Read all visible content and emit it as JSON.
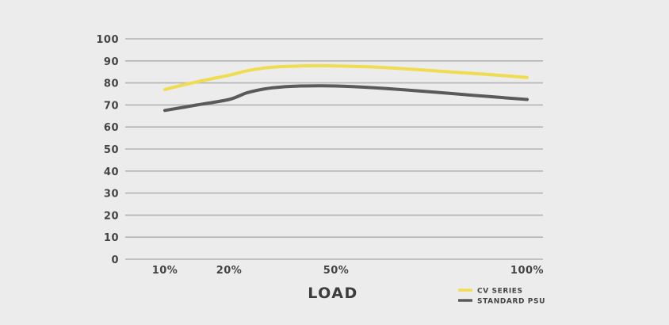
{
  "chart_data": {
    "type": "line",
    "xlabel": "LOAD",
    "ylabel": "",
    "ylim": [
      0,
      100
    ],
    "yticks": [
      0,
      10,
      20,
      30,
      40,
      50,
      60,
      70,
      80,
      90,
      100
    ],
    "xlim": [
      0,
      100
    ],
    "xticks": [
      {
        "value": 10,
        "label": "10%"
      },
      {
        "value": 20,
        "label": "20%"
      },
      {
        "value": 50,
        "label": "50%"
      },
      {
        "value": 100,
        "label": "100%"
      }
    ],
    "grid": true,
    "legend_position": "bottom-right",
    "series": [
      {
        "name": "CV SERIES",
        "color": "#f0dc50",
        "x": [
          10,
          15,
          20,
          25,
          30,
          35,
          40,
          45,
          50,
          60,
          70,
          80,
          90,
          100
        ],
        "y": [
          77,
          80.5,
          83.5,
          85.5,
          86.8,
          87.4,
          87.7,
          87.8,
          87.7,
          87.2,
          86.2,
          85,
          83.8,
          82.5
        ]
      },
      {
        "name": "STANDARD PSU",
        "color": "#5a5a5c",
        "x": [
          10,
          15,
          20,
          25,
          30,
          35,
          40,
          45,
          50,
          60,
          70,
          80,
          90,
          100
        ],
        "y": [
          67.5,
          70,
          72.5,
          75.5,
          77.3,
          78.2,
          78.6,
          78.7,
          78.6,
          77.8,
          76.6,
          75.2,
          73.8,
          72.5
        ]
      }
    ]
  }
}
